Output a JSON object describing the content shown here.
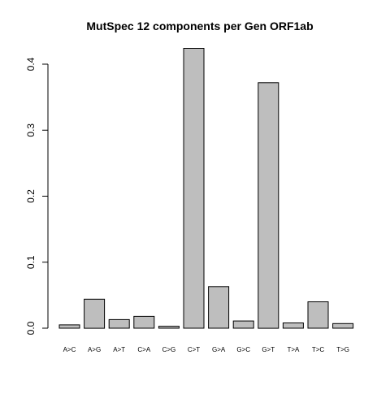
{
  "chart_data": {
    "type": "bar",
    "title": "MutSpec 12 components per Gen ORF1ab",
    "xlabel": "",
    "ylabel": "",
    "categories": [
      "A>C",
      "A>G",
      "A>T",
      "C>A",
      "C>G",
      "C>T",
      "G>A",
      "G>C",
      "G>T",
      "T>A",
      "T>C",
      "T>G"
    ],
    "values": [
      0.005,
      0.044,
      0.013,
      0.018,
      0.003,
      0.424,
      0.063,
      0.011,
      0.372,
      0.008,
      0.04,
      0.007
    ],
    "ylim": [
      0,
      0.43
    ],
    "yticks": [
      0.0,
      0.1,
      0.2,
      0.3,
      0.4
    ],
    "ytick_labels": [
      "0.0",
      "0.1",
      "0.2",
      "0.3",
      "0.4"
    ],
    "bar_color": "#bebebe",
    "bar_border_color": "#000000",
    "grid": false,
    "legend": "none"
  }
}
